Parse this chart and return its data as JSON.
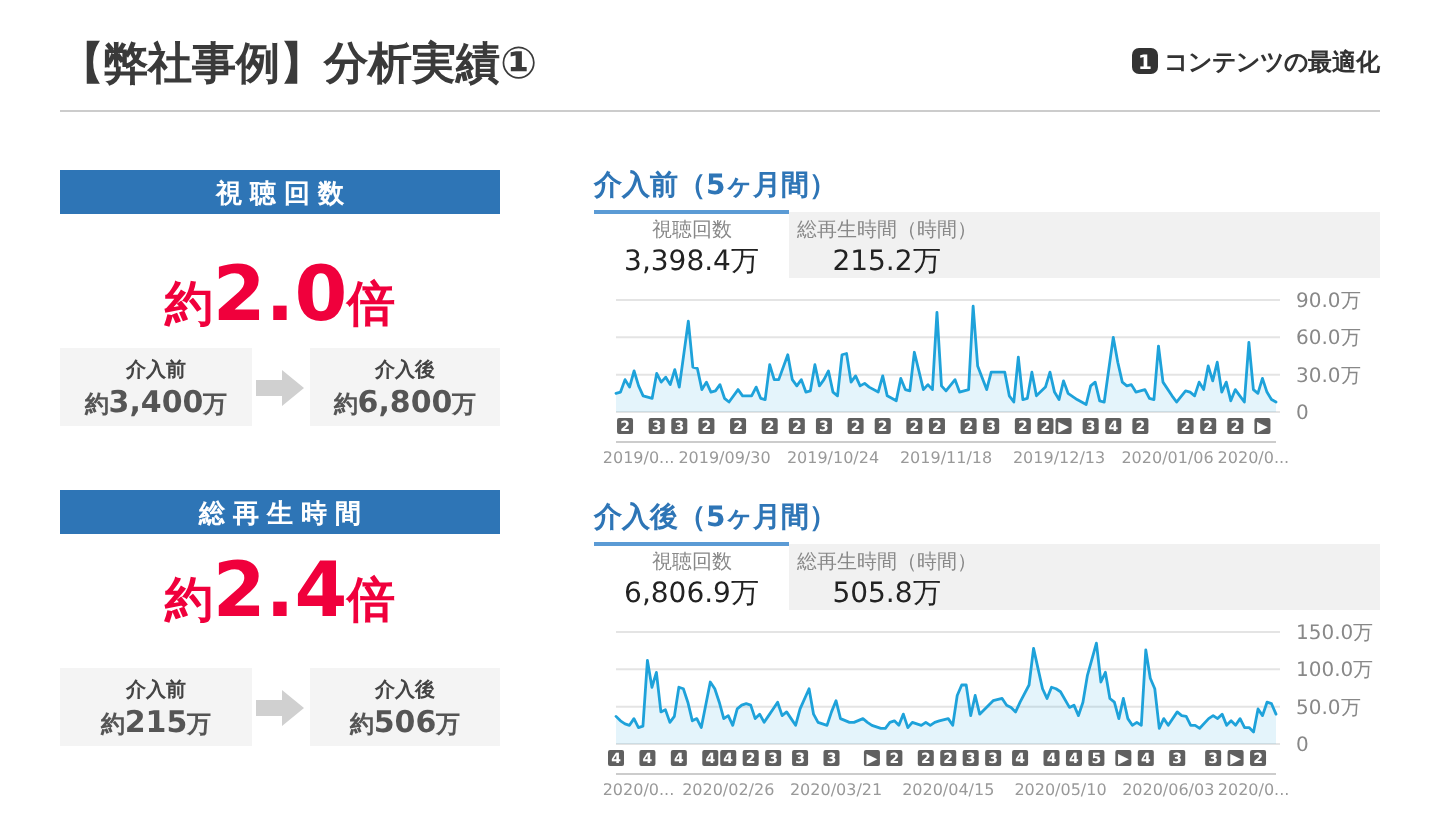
{
  "chart_data": [
    {
      "type": "other",
      "title": "【弊社事例】分析実績①",
      "subtitle": "コンテンツの最適化",
      "annotations": [
        "1",
        "視聴回数",
        "約2.0倍",
        "介入前",
        "約3,400万",
        "介入後",
        "約6,800万",
        "総再生時間",
        "約2.4倍",
        "介入前",
        "約215万",
        "介入後",
        "約506万"
      ]
    },
    {
      "type": "area",
      "title": "介入前（5ヶ月間）",
      "color": "#1ea2da",
      "grid": "y",
      "xlim": [
        "2019-09-06",
        "2020-01-30"
      ],
      "ylim": [
        0,
        90
      ],
      "xticks": [
        {
          "value": "2019-09-11",
          "label": "2019/0..."
        },
        {
          "value": "2019-09-30",
          "label": "2019/09/30"
        },
        {
          "value": "2019-10-24",
          "label": "2019/10/24"
        },
        {
          "value": "2019-11-18",
          "label": "2019/11/18"
        },
        {
          "value": "2019-12-13",
          "label": "2019/12/13"
        },
        {
          "value": "2020-01-06",
          "label": "2020/01/06"
        },
        {
          "value": "2020-01-25",
          "label": "2020/0..."
        }
      ],
      "yticks": [
        0,
        {
          "value": 30,
          "label": "30.0万"
        },
        {
          "value": 60,
          "label": "60.0万"
        },
        {
          "value": 90,
          "label": "90.0万"
        }
      ],
      "x": [
        "2019-09-06",
        "2019-09-07",
        "2019-09-08",
        "2019-09-09",
        "2019-09-10",
        "2019-09-11",
        "2019-09-12",
        "2019-09-14",
        "2019-09-15",
        "2019-09-16",
        "2019-09-17",
        "2019-09-18",
        "2019-09-19",
        "2019-09-20",
        "2019-09-22",
        "2019-09-23",
        "2019-09-24",
        "2019-09-25",
        "2019-09-26",
        "2019-09-27",
        "2019-09-28",
        "2019-09-29",
        "2019-09-30",
        "2019-10-01",
        "2019-10-03",
        "2019-10-04",
        "2019-10-06",
        "2019-10-07",
        "2019-10-08",
        "2019-10-09",
        "2019-10-10",
        "2019-10-11",
        "2019-10-12",
        "2019-10-14",
        "2019-10-15",
        "2019-10-16",
        "2019-10-17",
        "2019-10-18",
        "2019-10-19",
        "2019-10-20",
        "2019-10-21",
        "2019-10-22",
        "2019-10-23",
        "2019-10-24",
        "2019-10-25",
        "2019-10-26",
        "2019-10-27",
        "2019-10-28",
        "2019-10-29",
        "2019-10-30",
        "2019-10-31",
        "2019-11-01",
        "2019-11-03",
        "2019-11-04",
        "2019-11-05",
        "2019-11-07",
        "2019-11-08",
        "2019-11-09",
        "2019-11-10",
        "2019-11-11",
        "2019-11-13",
        "2019-11-14",
        "2019-11-15",
        "2019-11-16",
        "2019-11-17",
        "2019-11-18",
        "2019-11-20",
        "2019-11-21",
        "2019-11-23",
        "2019-11-24",
        "2019-11-25",
        "2019-11-27",
        "2019-11-28",
        "2019-11-30",
        "2019-12-01",
        "2019-12-02",
        "2019-12-03",
        "2019-12-04",
        "2019-12-05",
        "2019-12-06",
        "2019-12-07",
        "2019-12-08",
        "2019-12-10",
        "2019-12-11",
        "2019-12-12",
        "2019-12-13",
        "2019-12-14",
        "2019-12-15",
        "2019-12-17",
        "2019-12-19",
        "2019-12-20",
        "2019-12-21",
        "2019-12-22",
        "2019-12-23",
        "2019-12-25",
        "2019-12-26",
        "2019-12-27",
        "2019-12-28",
        "2019-12-29",
        "2019-12-30",
        "2020-01-01",
        "2020-01-02",
        "2020-01-03",
        "2020-01-04",
        "2020-01-05",
        "2020-01-07",
        "2020-01-08",
        "2020-01-10",
        "2020-01-11",
        "2020-01-12",
        "2020-01-13",
        "2020-01-14",
        "2020-01-15",
        "2020-01-16",
        "2020-01-17",
        "2020-01-18",
        "2020-01-19",
        "2020-01-20",
        "2020-01-21",
        "2020-01-22",
        "2020-01-23",
        "2020-01-24",
        "2020-01-25",
        "2020-01-26",
        "2020-01-27",
        "2020-01-28",
        "2020-01-29",
        "2020-01-30"
      ],
      "values": [
        15,
        16,
        26,
        20,
        33,
        21,
        13,
        11,
        31,
        24,
        28,
        22,
        34,
        20,
        73,
        36,
        35,
        18,
        24,
        16,
        17,
        22,
        11,
        8,
        18,
        13,
        13,
        20,
        11,
        10,
        38,
        26,
        26,
        46,
        26,
        21,
        26,
        16,
        17,
        38,
        21,
        26,
        33,
        16,
        13,
        46,
        47,
        24,
        29,
        21,
        23,
        20,
        16,
        29,
        13,
        9,
        27,
        18,
        17,
        48,
        18,
        22,
        18,
        80,
        21,
        17,
        26,
        16,
        18,
        85,
        37,
        18,
        32,
        32,
        32,
        13,
        8,
        44,
        10,
        11,
        32,
        13,
        20,
        32,
        16,
        10,
        25,
        15,
        10,
        6,
        21,
        24,
        9,
        8,
        60,
        40,
        24,
        21,
        22,
        16,
        18,
        11,
        10,
        53,
        24,
        13,
        8,
        17,
        16,
        13,
        24,
        18,
        37,
        25,
        40,
        16,
        24,
        9,
        18,
        13,
        8,
        56,
        18,
        15,
        27,
        16,
        10,
        8
      ],
      "annotations": [
        "視聴回数",
        "3,398.4万",
        "総再生時間（時間）",
        "215.2万",
        {
          "text": "2",
          "x": "2019-09-08"
        },
        {
          "text": "3",
          "x": "2019-09-15"
        },
        {
          "text": "3",
          "x": "2019-09-20"
        },
        {
          "text": "2",
          "x": "2019-09-26"
        },
        {
          "text": "2",
          "x": "2019-10-03"
        },
        {
          "text": "2",
          "x": "2019-10-10"
        },
        {
          "text": "2",
          "x": "2019-10-16"
        },
        {
          "text": "3",
          "x": "2019-10-22"
        },
        {
          "text": "2",
          "x": "2019-10-29"
        },
        {
          "text": "2",
          "x": "2019-11-04"
        },
        {
          "text": "2",
          "x": "2019-11-11"
        },
        {
          "text": "2",
          "x": "2019-11-16"
        },
        {
          "text": "2",
          "x": "2019-11-23"
        },
        {
          "text": "3",
          "x": "2019-11-28"
        },
        {
          "text": "2",
          "x": "2019-12-05"
        },
        {
          "text": "2",
          "x": "2019-12-10"
        },
        {
          "text": "▶",
          "x": "2019-12-14"
        },
        {
          "text": "3",
          "x": "2019-12-20"
        },
        {
          "text": "4",
          "x": "2019-12-25"
        },
        {
          "text": "2",
          "x": "2019-12-31"
        },
        {
          "text": "2",
          "x": "2020-01-10"
        },
        {
          "text": "2",
          "x": "2020-01-15"
        },
        {
          "text": "2",
          "x": "2020-01-21"
        },
        {
          "text": "▶",
          "x": "2020-01-27"
        }
      ]
    },
    {
      "type": "area",
      "title": "介入後（5ヶ月間）",
      "color": "#1ea2da",
      "grid": "y",
      "xlim": [
        "2020-02-01",
        "2020-06-27"
      ],
      "ylim": [
        0,
        150
      ],
      "xticks": [
        {
          "value": "2020-02-06",
          "label": "2020/0..."
        },
        {
          "value": "2020-02-26",
          "label": "2020/02/26"
        },
        {
          "value": "2020-03-21",
          "label": "2020/03/21"
        },
        {
          "value": "2020-04-15",
          "label": "2020/04/15"
        },
        {
          "value": "2020-05-10",
          "label": "2020/05/10"
        },
        {
          "value": "2020-06-03",
          "label": "2020/06/03"
        },
        {
          "value": "2020-06-22",
          "label": "2020/0..."
        }
      ],
      "yticks": [
        0,
        {
          "value": 50,
          "label": "50.0万"
        },
        {
          "value": 100,
          "label": "100.0万"
        },
        {
          "value": 150,
          "label": "150.0万"
        }
      ],
      "x": [
        "2020-02-01",
        "2020-02-02",
        "2020-02-03",
        "2020-02-04",
        "2020-02-05",
        "2020-02-06",
        "2020-02-07",
        "2020-02-08",
        "2020-02-09",
        "2020-02-10",
        "2020-02-11",
        "2020-02-12",
        "2020-02-13",
        "2020-02-14",
        "2020-02-15",
        "2020-02-16",
        "2020-02-17",
        "2020-02-18",
        "2020-02-19",
        "2020-02-20",
        "2020-02-22",
        "2020-02-23",
        "2020-02-24",
        "2020-02-25",
        "2020-02-26",
        "2020-02-27",
        "2020-02-28",
        "2020-02-29",
        "2020-03-01",
        "2020-03-02",
        "2020-03-03",
        "2020-03-04",
        "2020-03-05",
        "2020-03-06",
        "2020-03-07",
        "2020-03-08",
        "2020-03-09",
        "2020-03-10",
        "2020-03-11",
        "2020-03-12",
        "2020-03-13",
        "2020-03-15",
        "2020-03-16",
        "2020-03-17",
        "2020-03-19",
        "2020-03-20",
        "2020-03-21",
        "2020-03-22",
        "2020-03-24",
        "2020-03-25",
        "2020-03-27",
        "2020-03-28",
        "2020-03-29",
        "2020-03-31",
        "2020-04-01",
        "2020-04-02",
        "2020-04-03",
        "2020-04-04",
        "2020-04-05",
        "2020-04-06",
        "2020-04-07",
        "2020-04-09",
        "2020-04-10",
        "2020-04-11",
        "2020-04-12",
        "2020-04-13",
        "2020-04-15",
        "2020-04-16",
        "2020-04-17",
        "2020-04-18",
        "2020-04-19",
        "2020-04-20",
        "2020-04-21",
        "2020-04-22",
        "2020-04-24",
        "2020-04-25",
        "2020-04-27",
        "2020-04-28",
        "2020-04-29",
        "2020-04-30",
        "2020-05-01",
        "2020-05-03",
        "2020-05-04",
        "2020-05-05",
        "2020-05-06",
        "2020-05-07",
        "2020-05-08",
        "2020-05-09",
        "2020-05-10",
        "2020-05-12",
        "2020-05-13",
        "2020-05-14",
        "2020-05-15",
        "2020-05-16",
        "2020-05-18",
        "2020-05-19",
        "2020-05-20",
        "2020-05-21",
        "2020-05-22",
        "2020-05-23",
        "2020-05-24",
        "2020-05-25",
        "2020-05-26",
        "2020-05-27",
        "2020-05-28",
        "2020-05-29",
        "2020-05-30",
        "2020-05-31",
        "2020-06-01",
        "2020-06-02",
        "2020-06-03",
        "2020-06-05",
        "2020-06-06",
        "2020-06-07",
        "2020-06-08",
        "2020-06-09",
        "2020-06-10",
        "2020-06-12",
        "2020-06-13",
        "2020-06-14",
        "2020-06-15",
        "2020-06-16",
        "2020-06-17",
        "2020-06-18",
        "2020-06-19",
        "2020-06-20",
        "2020-06-21",
        "2020-06-22",
        "2020-06-23",
        "2020-06-24",
        "2020-06-25",
        "2020-06-26",
        "2020-06-27"
      ],
      "values": [
        37,
        31,
        27,
        25,
        34,
        22,
        24,
        112,
        76,
        96,
        43,
        46,
        29,
        37,
        76,
        74,
        56,
        31,
        34,
        22,
        83,
        74,
        56,
        34,
        38,
        25,
        47,
        52,
        54,
        52,
        34,
        40,
        29,
        38,
        47,
        56,
        38,
        43,
        34,
        25,
        47,
        74,
        40,
        29,
        25,
        43,
        58,
        34,
        29,
        29,
        34,
        29,
        25,
        21,
        21,
        29,
        31,
        25,
        40,
        22,
        29,
        25,
        29,
        25,
        29,
        31,
        34,
        25,
        65,
        79,
        79,
        38,
        65,
        40,
        52,
        58,
        61,
        52,
        49,
        43,
        56,
        79,
        128,
        101,
        74,
        61,
        76,
        74,
        70,
        49,
        52,
        38,
        56,
        92,
        135,
        83,
        96,
        61,
        56,
        34,
        61,
        34,
        25,
        29,
        25,
        126,
        88,
        74,
        21,
        34,
        25,
        43,
        38,
        37,
        25,
        25,
        21,
        34,
        38,
        34,
        40,
        25,
        31,
        25,
        34,
        22,
        22,
        16,
        47,
        38,
        56,
        54,
        40
      ],
      "annotations": [
        "視聴回数",
        "6,806.9万",
        "総再生時間（時間）",
        "505.8万",
        {
          "text": "4",
          "x": "2020-02-01"
        },
        {
          "text": "4",
          "x": "2020-02-08"
        },
        {
          "text": "4",
          "x": "2020-02-15"
        },
        {
          "text": "4",
          "x": "2020-02-22"
        },
        {
          "text": "4",
          "x": "2020-02-26"
        },
        {
          "text": "2",
          "x": "2020-03-02"
        },
        {
          "text": "3",
          "x": "2020-03-07"
        },
        {
          "text": "3",
          "x": "2020-03-13"
        },
        {
          "text": "3",
          "x": "2020-03-20"
        },
        {
          "text": "▶",
          "x": "2020-03-29"
        },
        {
          "text": "2",
          "x": "2020-04-03"
        },
        {
          "text": "2",
          "x": "2020-04-10"
        },
        {
          "text": "2",
          "x": "2020-04-15"
        },
        {
          "text": "3",
          "x": "2020-04-20"
        },
        {
          "text": "3",
          "x": "2020-04-25"
        },
        {
          "text": "4",
          "x": "2020-05-01"
        },
        {
          "text": "4",
          "x": "2020-05-08"
        },
        {
          "text": "4",
          "x": "2020-05-13"
        },
        {
          "text": "5",
          "x": "2020-05-18"
        },
        {
          "text": "▶",
          "x": "2020-05-24"
        },
        {
          "text": "4",
          "x": "2020-05-29"
        },
        {
          "text": "3",
          "x": "2020-06-05"
        },
        {
          "text": "3",
          "x": "2020-06-13"
        },
        {
          "text": "▶",
          "x": "2020-06-18"
        },
        {
          "text": "2",
          "x": "2020-06-23"
        }
      ]
    }
  ]
}
